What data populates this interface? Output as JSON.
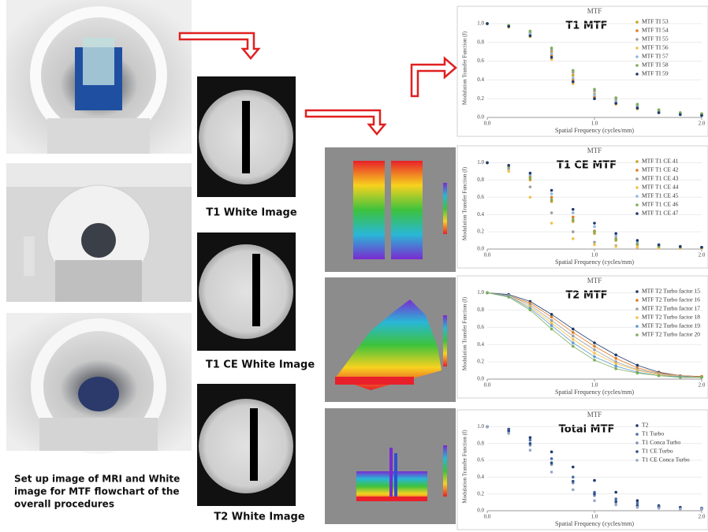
{
  "caption": [
    "Set up image of MRI and White",
    "image for MTF flowchart of the",
    "overall procedures"
  ],
  "image_labels": [
    "T1 White Image",
    "T1 CE White Image",
    "T2 White Image"
  ],
  "chart_data": [
    {
      "type": "scatter",
      "title": "MTF",
      "label": "T1 MTF",
      "y_label": "Modulation Transfer Function (f)",
      "x_label": "Spatial Frequency (cycles/mm)",
      "xlim": [
        0,
        2
      ],
      "ylim": [
        0,
        1.05
      ],
      "xticks": [
        {
          "value": 0,
          "label": "0.0"
        },
        {
          "value": 1,
          "label": "1.0"
        },
        {
          "value": 2,
          "label": "2.0"
        }
      ],
      "yticks": [
        {
          "value": 0,
          "label": "0.0"
        },
        {
          "value": 0.2,
          "label": "0.2"
        },
        {
          "value": 0.4,
          "label": "0.4"
        },
        {
          "value": 0.6,
          "label": "0.6"
        },
        {
          "value": 0.8,
          "label": "0.8"
        },
        {
          "value": 1,
          "label": "1.0"
        }
      ],
      "x": [
        0,
        0.2,
        0.4,
        0.6,
        0.8,
        1,
        1.2,
        1.4,
        1.6,
        1.8,
        2
      ],
      "series": [
        {
          "name": "MTF TI 53",
          "color": "#c9a227",
          "values": [
            1,
            0.98,
            0.9,
            0.7,
            0.45,
            0.25,
            0.18,
            0.12,
            0.07,
            0.05,
            0.04
          ]
        },
        {
          "name": "MTF TI 54",
          "color": "#e07b24",
          "values": [
            1,
            0.97,
            0.88,
            0.66,
            0.4,
            0.22,
            0.16,
            0.1,
            0.06,
            0.04,
            0.03
          ]
        },
        {
          "name": "MTF TI 55",
          "color": "#9e9e9e",
          "values": [
            1,
            0.98,
            0.91,
            0.72,
            0.48,
            0.28,
            0.2,
            0.13,
            0.08,
            0.05,
            0.04
          ]
        },
        {
          "name": "MTF TI 56",
          "color": "#f2c14e",
          "values": [
            1,
            0.96,
            0.86,
            0.62,
            0.36,
            0.2,
            0.14,
            0.09,
            0.05,
            0.04,
            0.03
          ]
        },
        {
          "name": "MTF TI 57",
          "color": "#8fb8de",
          "values": [
            1,
            0.97,
            0.89,
            0.68,
            0.42,
            0.24,
            0.17,
            0.11,
            0.06,
            0.04,
            0.03
          ]
        },
        {
          "name": "MTF TI 58",
          "color": "#7cae5a",
          "values": [
            1,
            0.98,
            0.92,
            0.74,
            0.5,
            0.3,
            0.21,
            0.14,
            0.08,
            0.05,
            0.04
          ]
        },
        {
          "name": "MTF TI 59",
          "color": "#1f3a6b",
          "values": [
            1,
            0.97,
            0.87,
            0.64,
            0.38,
            0.2,
            0.15,
            0.1,
            0.05,
            0.03,
            0.02
          ]
        }
      ]
    },
    {
      "type": "scatter",
      "title": "MTF",
      "label": "T1 CE MTF",
      "y_label": "Modulation Transfer Function (f)",
      "x_label": "Spatial Frequency (cycles/mm)",
      "xlim": [
        0,
        2
      ],
      "ylim": [
        0,
        1.05
      ],
      "xticks": [
        {
          "value": 0,
          "label": "0.0"
        },
        {
          "value": 1,
          "label": "1.0"
        },
        {
          "value": 2,
          "label": "2.0"
        }
      ],
      "yticks": [
        {
          "value": 0,
          "label": "0.0"
        },
        {
          "value": 0.2,
          "label": "0.2"
        },
        {
          "value": 0.4,
          "label": "0.4"
        },
        {
          "value": 0.6,
          "label": "0.6"
        },
        {
          "value": 0.8,
          "label": "0.8"
        },
        {
          "value": 1,
          "label": "1.0"
        }
      ],
      "x": [
        0,
        0.2,
        0.4,
        0.6,
        0.8,
        1,
        1.2,
        1.4,
        1.6,
        1.8,
        2
      ],
      "series": [
        {
          "name": "MTF T1 CE 41",
          "color": "#c9a227",
          "values": [
            1,
            0.95,
            0.8,
            0.55,
            0.32,
            0.18,
            0.1,
            0.05,
            0.03,
            0.02,
            0.02
          ]
        },
        {
          "name": "MTF T1 CE 42",
          "color": "#e07b24",
          "values": [
            1,
            0.96,
            0.84,
            0.6,
            0.37,
            0.21,
            0.12,
            0.06,
            0.03,
            0.02,
            0.02
          ]
        },
        {
          "name": "MTF T1 CE 43",
          "color": "#9e9e9e",
          "values": [
            1,
            0.93,
            0.72,
            0.42,
            0.2,
            0.08,
            0.04,
            0.02,
            0.02,
            0.01,
            0.01
          ]
        },
        {
          "name": "MTF T1 CE 44",
          "color": "#f2c14e",
          "values": [
            1,
            0.9,
            0.6,
            0.3,
            0.12,
            0.05,
            0.03,
            0.02,
            0.01,
            0.01,
            0.01
          ]
        },
        {
          "name": "MTF T1 CE 45",
          "color": "#8fb8de",
          "values": [
            1,
            0.97,
            0.86,
            0.64,
            0.42,
            0.26,
            0.15,
            0.08,
            0.04,
            0.03,
            0.02
          ]
        },
        {
          "name": "MTF T1 CE 46",
          "color": "#7cae5a",
          "values": [
            1,
            0.96,
            0.82,
            0.57,
            0.34,
            0.2,
            0.11,
            0.06,
            0.03,
            0.02,
            0.02
          ]
        },
        {
          "name": "MTF T1 CE 47",
          "color": "#1f3a6b",
          "values": [
            1,
            0.97,
            0.88,
            0.68,
            0.46,
            0.3,
            0.18,
            0.1,
            0.05,
            0.03,
            0.02
          ]
        }
      ]
    },
    {
      "type": "scatter",
      "lines": true,
      "title": "MTF",
      "label": "T2 MTF",
      "y_label": "Modulation Transfer Function (f)",
      "x_label": "Spatial Frequency (cycles/mm)",
      "xlim": [
        0,
        2
      ],
      "ylim": [
        0,
        1.05
      ],
      "xticks": [
        {
          "value": 0,
          "label": "0.0"
        },
        {
          "value": 1,
          "label": "1.0"
        },
        {
          "value": 2,
          "label": "2.0"
        }
      ],
      "yticks": [
        {
          "value": 0,
          "label": "0.0"
        },
        {
          "value": 0.2,
          "label": "0.2"
        },
        {
          "value": 0.4,
          "label": "0.4"
        },
        {
          "value": 0.6,
          "label": "0.6"
        },
        {
          "value": 0.8,
          "label": "0.8"
        },
        {
          "value": 1,
          "label": "1.0"
        }
      ],
      "x": [
        0,
        0.2,
        0.4,
        0.6,
        0.8,
        1,
        1.2,
        1.4,
        1.6,
        1.8,
        2
      ],
      "series": [
        {
          "name": "MTF T2 Turbo factor 15",
          "color": "#1f3a6b",
          "values": [
            1,
            0.98,
            0.9,
            0.75,
            0.58,
            0.42,
            0.28,
            0.16,
            0.08,
            0.04,
            0.03
          ]
        },
        {
          "name": "MTF T2 Turbo factor 16",
          "color": "#e07b24",
          "values": [
            1,
            0.97,
            0.88,
            0.72,
            0.54,
            0.38,
            0.24,
            0.13,
            0.07,
            0.04,
            0.03
          ]
        },
        {
          "name": "MTF T2 Turbo factor 17",
          "color": "#9e9e9e",
          "values": [
            1,
            0.97,
            0.86,
            0.68,
            0.5,
            0.34,
            0.2,
            0.11,
            0.06,
            0.03,
            0.02
          ]
        },
        {
          "name": "MTF T2 Turbo factor 18",
          "color": "#f2c14e",
          "values": [
            1,
            0.96,
            0.84,
            0.65,
            0.46,
            0.3,
            0.18,
            0.1,
            0.05,
            0.03,
            0.02
          ]
        },
        {
          "name": "MTF T2 Turbo factor 19",
          "color": "#5b9bd5",
          "values": [
            1,
            0.96,
            0.82,
            0.62,
            0.42,
            0.26,
            0.15,
            0.08,
            0.04,
            0.03,
            0.02
          ]
        },
        {
          "name": "MTF T2 Turbo factor 20",
          "color": "#7cae5a",
          "values": [
            1,
            0.95,
            0.8,
            0.58,
            0.38,
            0.22,
            0.12,
            0.07,
            0.04,
            0.02,
            0.02
          ]
        }
      ]
    },
    {
      "type": "scatter",
      "title": "MTF",
      "label": "Total MTF",
      "y_label": "Modulation Transfer Function (f)",
      "x_label": "Spatial Frequency (cycles/mm)",
      "xlim": [
        0,
        2
      ],
      "ylim": [
        0,
        1.05
      ],
      "xticks": [
        {
          "value": 0,
          "label": "0.0"
        },
        {
          "value": 1,
          "label": "1.0"
        },
        {
          "value": 2,
          "label": "2.0"
        }
      ],
      "yticks": [
        {
          "value": 0,
          "label": "0.0"
        },
        {
          "value": 0.2,
          "label": "0.2"
        },
        {
          "value": 0.4,
          "label": "0.4"
        },
        {
          "value": 0.6,
          "label": "0.6"
        },
        {
          "value": 0.8,
          "label": "0.8"
        },
        {
          "value": 1,
          "label": "1.0"
        }
      ],
      "x": [
        0,
        0.2,
        0.4,
        0.6,
        0.8,
        1,
        1.2,
        1.4,
        1.6,
        1.8,
        2
      ],
      "series": [
        {
          "name": "T2",
          "color": "#1f3a6b",
          "values": [
            1,
            0.97,
            0.87,
            0.7,
            0.52,
            0.36,
            0.22,
            0.12,
            0.06,
            0.04,
            0.03
          ]
        },
        {
          "name": "T1 Turbo",
          "color": "#4a6fa5",
          "values": [
            1,
            0.96,
            0.84,
            0.62,
            0.4,
            0.22,
            0.14,
            0.09,
            0.05,
            0.03,
            0.03
          ]
        },
        {
          "name": "T1 Conca Turbo",
          "color": "#7f8fb0",
          "values": [
            1,
            0.94,
            0.78,
            0.55,
            0.33,
            0.18,
            0.1,
            0.06,
            0.04,
            0.03,
            0.02
          ]
        },
        {
          "name": "T1 CE Turbo",
          "color": "#2e4f8c",
          "values": [
            1,
            0.95,
            0.8,
            0.57,
            0.35,
            0.2,
            0.11,
            0.06,
            0.04,
            0.03,
            0.02
          ]
        },
        {
          "name": "T1 CE Conca Turbo",
          "color": "#9aa7c7",
          "values": [
            1,
            0.92,
            0.72,
            0.46,
            0.25,
            0.12,
            0.07,
            0.04,
            0.03,
            0.02,
            0.02
          ]
        }
      ]
    }
  ]
}
